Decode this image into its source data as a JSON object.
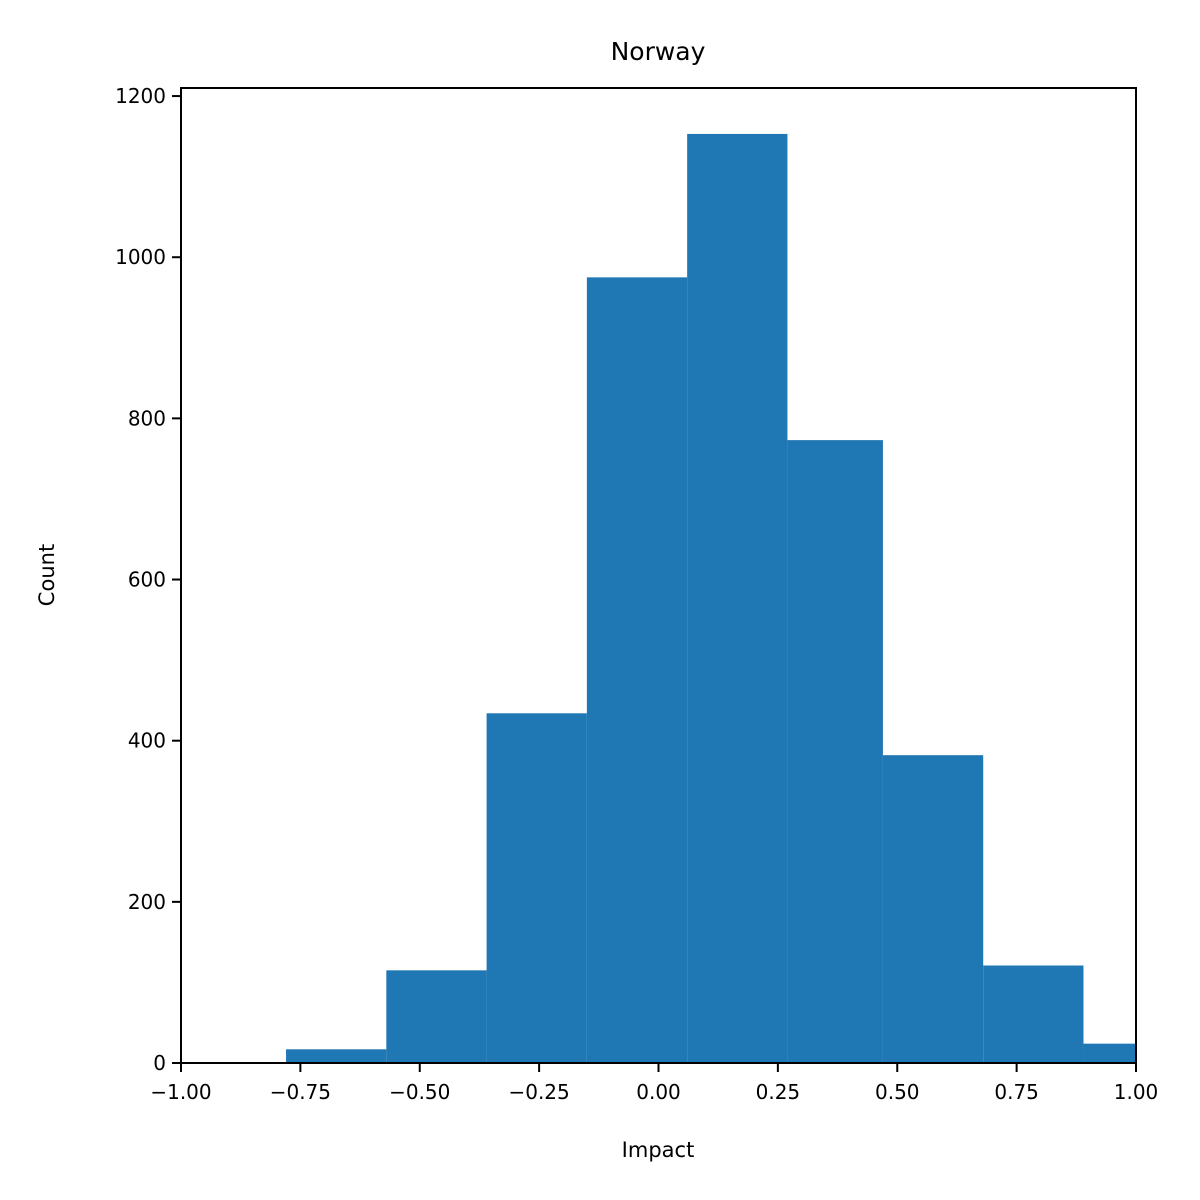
{
  "chart_data": {
    "type": "bar",
    "title": "Norway",
    "xlabel": "Impact",
    "ylabel": "Count",
    "xlim": [
      -1.0,
      1.0
    ],
    "ylim": [
      0,
      1210
    ],
    "x_ticks": [
      "−1.00",
      "−0.75",
      "−0.50",
      "−0.25",
      "0.00",
      "0.25",
      "0.50",
      "0.75",
      "1.00"
    ],
    "x_tick_values": [
      -1.0,
      -0.75,
      -0.5,
      -0.25,
      0.0,
      0.25,
      0.5,
      0.75,
      1.0
    ],
    "y_ticks": [
      "0",
      "200",
      "400",
      "600",
      "800",
      "1000",
      "1200"
    ],
    "y_tick_values": [
      0,
      200,
      400,
      600,
      800,
      1000,
      1200
    ],
    "bin_edges": [
      -0.78,
      -0.57,
      -0.36,
      -0.15,
      0.06,
      0.27,
      0.47,
      0.68,
      0.89,
      1.1
    ],
    "values": [
      17,
      115,
      434,
      975,
      1153,
      773,
      382,
      121,
      24
    ],
    "grid": false,
    "bar_color": "#1f77b4"
  }
}
